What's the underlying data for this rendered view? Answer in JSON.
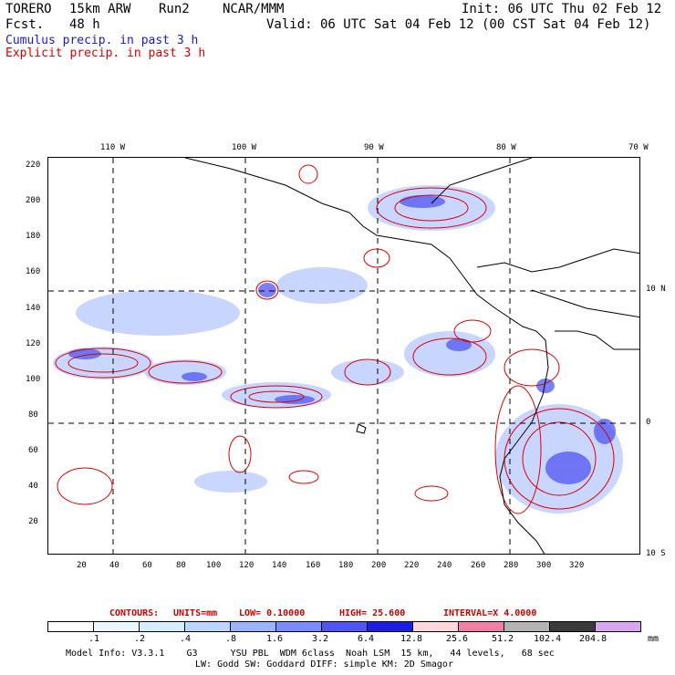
{
  "header": {
    "model": "TORERO",
    "resolution": "15km ARW",
    "run": "Run2",
    "org": "NCAR/MMM",
    "fcst_label": "Fcst.",
    "fcst_value": "48 h",
    "init": "Init: 06 UTC Thu 02 Feb 12",
    "valid": "Valid: 06 UTC Sat 04 Feb 12 (00 CST Sat 04 Feb 12)",
    "field1": "Cumulus precip. in past 3 h",
    "field2": "Explicit precip. in past 3 h",
    "field1_color": "#1a1acc",
    "field2_color": "#dd0000"
  },
  "map": {
    "lon_labels": [
      "110 W",
      "100 W",
      "90 W",
      "80 W",
      "70 W"
    ],
    "lat_labels": [
      "10 N",
      "0",
      "10 S"
    ],
    "y_ticks": [
      "220",
      "200",
      "180",
      "160",
      "140",
      "120",
      "100",
      "80",
      "60",
      "40",
      "20"
    ],
    "x_ticks": [
      "20",
      "40",
      "60",
      "80",
      "100",
      "120",
      "140",
      "160",
      "180",
      "200",
      "220",
      "240",
      "260",
      "280",
      "300",
      "320"
    ]
  },
  "contours": {
    "label": "CONTOURS:",
    "units": "UNITS=mm",
    "low": "LOW= 0.10000",
    "high": "HIGH= 25.600",
    "interval": "INTERVAL=X 4.0000",
    "color": "#cc0000"
  },
  "legend": {
    "labels": [
      ".1",
      ".2",
      ".4",
      ".8",
      "1.6",
      "3.2",
      "6.4",
      "12.8",
      "25.6",
      "51.2",
      "102.4",
      "204.8"
    ],
    "unit": "mm",
    "colors": [
      "#ffffff",
      "#ebf7ff",
      "#d6edff",
      "#bcd6ff",
      "#9cb4ff",
      "#7a8cff",
      "#4f55f2",
      "#1e1ee0",
      "#ffd6dc",
      "#f07fa6",
      "#b3b3b3",
      "#3a3a3a",
      "#d9a6f0"
    ]
  },
  "footer": {
    "line1": "Model Info: V3.3.1    G3      YSU PBL  WDM 6class  Noah LSM  15 km,   44 levels,   68 sec",
    "line2": "LW: Godd SW: Goddard DIFF: simple KM: 2D Smagor"
  }
}
